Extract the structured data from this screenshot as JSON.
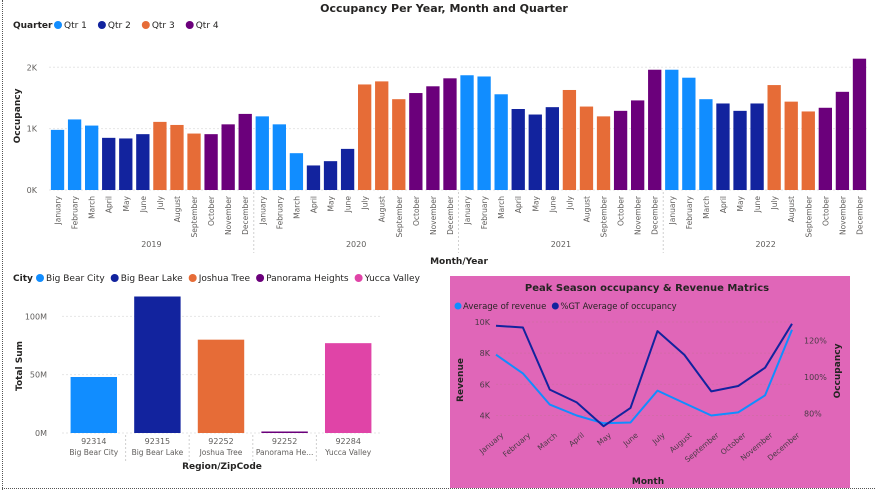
{
  "chart_data": [
    {
      "type": "bar",
      "title": "Occupancy Per Year, Month and Quarter",
      "legend_title": "Quarter",
      "legend_position": "top-left",
      "xlabel": "Month/Year",
      "ylabel": "Occupancy",
      "ylim": [
        0,
        2200
      ],
      "yticks": [
        0,
        1000,
        2000
      ],
      "ytick_labels": [
        "0K",
        "1K",
        "2K"
      ],
      "grid": true,
      "series": [
        {
          "name": "Qtr 1",
          "color": "#118DFF"
        },
        {
          "name": "Qtr 2",
          "color": "#12239E"
        },
        {
          "name": "Qtr 3",
          "color": "#E66C37"
        },
        {
          "name": "Qtr 4",
          "color": "#6B007B"
        }
      ],
      "month_names": [
        "January",
        "February",
        "March",
        "April",
        "May",
        "June",
        "July",
        "August",
        "September",
        "October",
        "November",
        "December"
      ],
      "years": [
        {
          "year": "2019",
          "values": [
            980,
            1150,
            1050,
            850,
            840,
            910,
            1110,
            1060,
            920,
            910,
            1070,
            1240
          ]
        },
        {
          "year": "2020",
          "values": [
            1200,
            1070,
            600,
            400,
            470,
            670,
            1720,
            1770,
            1480,
            1580,
            1690,
            1820
          ]
        },
        {
          "year": "2021",
          "values": [
            1870,
            1850,
            1560,
            1320,
            1230,
            1350,
            1630,
            1360,
            1200,
            1290,
            1460,
            1960
          ]
        },
        {
          "year": "2022",
          "values": [
            1960,
            1830,
            1480,
            1410,
            1290,
            1410,
            1710,
            1440,
            1280,
            1340,
            1600,
            2140
          ]
        }
      ]
    },
    {
      "type": "bar",
      "legend_title": "City",
      "legend_position": "top-left",
      "xlabel": "Region/ZipCode",
      "ylabel": "Total Sum",
      "ylim": [
        0,
        120000000
      ],
      "yticks": [
        0,
        50000000,
        100000000
      ],
      "ytick_labels": [
        "0M",
        "50M",
        "100M"
      ],
      "grid": true,
      "legend": [
        {
          "name": "Big Bear City",
          "color": "#118DFF"
        },
        {
          "name": "Big Bear Lake",
          "color": "#12239E"
        },
        {
          "name": "Joshua Tree",
          "color": "#E66C37"
        },
        {
          "name": "Panorama Heights",
          "color": "#6B007B"
        },
        {
          "name": "Yucca Valley",
          "color": "#E044A7"
        }
      ],
      "bars": [
        {
          "zip": "92314",
          "city": "Big Bear City",
          "value": 48000000,
          "color": "#118DFF"
        },
        {
          "zip": "92315",
          "city": "Big Bear Lake",
          "value": 117000000,
          "color": "#12239E"
        },
        {
          "zip": "92252",
          "city": "Joshua Tree",
          "value": 80000000,
          "color": "#E66C37"
        },
        {
          "zip": "92252",
          "city": "Panorama He...",
          "value": 1000000,
          "color": "#6B007B"
        },
        {
          "zip": "92284",
          "city": "Yucca Valley",
          "value": 77000000,
          "color": "#E044A7"
        }
      ]
    },
    {
      "type": "line",
      "title": "Peak Season occupancy & Revenue Matrics",
      "background": "#E066B8",
      "legend_position": "top-left",
      "xlabel": "Month",
      "ylabel": "Revenue",
      "y2label": "Occupancy",
      "ylim": [
        3200,
        10000
      ],
      "yticks": [
        4000,
        6000,
        8000,
        10000
      ],
      "ytick_labels": [
        "4K",
        "6K",
        "8K",
        "10K"
      ],
      "y2lim": [
        0.72,
        1.3
      ],
      "y2ticks": [
        0.8,
        1.0,
        1.2
      ],
      "y2tick_labels": [
        "80%",
        "100%",
        "120%"
      ],
      "grid": true,
      "categories": [
        "January",
        "February",
        "March",
        "April",
        "May",
        "June",
        "July",
        "August",
        "September",
        "October",
        "November",
        "December"
      ],
      "series": [
        {
          "name": "Average of revenue",
          "axis": "left",
          "color": "#118DFF",
          "values": [
            7900,
            6700,
            4700,
            4000,
            3500,
            3550,
            5600,
            4800,
            4000,
            4200,
            5300,
            9500
          ]
        },
        {
          "name": "%GT Average of occupancy",
          "axis": "right",
          "color": "#12239E",
          "values": [
            1.28,
            1.27,
            0.93,
            0.86,
            0.73,
            0.83,
            1.25,
            1.12,
            0.92,
            0.95,
            1.05,
            1.29
          ]
        }
      ]
    }
  ]
}
